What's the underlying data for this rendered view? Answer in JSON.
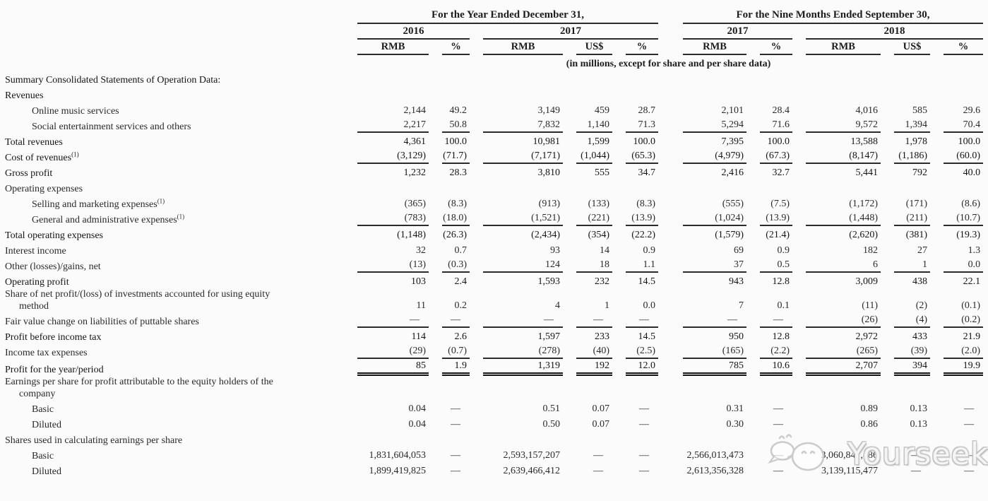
{
  "page": {
    "background": "#fbfbfb",
    "text_color": "#2a2a2a",
    "rule_color": "#2b2b2b"
  },
  "table": {
    "group_headers": [
      "For the Year Ended December 31,",
      "For the Nine Months Ended September 30,"
    ],
    "year_headers": [
      "2016",
      "2017",
      "2017",
      "2018"
    ],
    "col_headers": [
      "RMB",
      "%",
      "RMB",
      "US$",
      "%",
      "RMB",
      "%",
      "RMB",
      "US$",
      "%"
    ],
    "units_note": "(in millions, except for share and per share data)",
    "rows": [
      {
        "label": "Summary Consolidated Statements of Operation Data:",
        "bold": true,
        "indent": 0,
        "values": null
      },
      {
        "label": "Revenues",
        "bold": true,
        "indent": 0,
        "values": null
      },
      {
        "label": "Online music services",
        "indent": 1,
        "values": [
          "2,144",
          "49.2",
          "3,149",
          "459",
          "28.7",
          "2,101",
          "28.4",
          "4,016",
          "585",
          "29.6"
        ]
      },
      {
        "label": "Social entertainment services and others",
        "indent": 1,
        "rule": "single",
        "values": [
          "2,217",
          "50.8",
          "7,832",
          "1,140",
          "71.3",
          "5,294",
          "71.6",
          "9,572",
          "1,394",
          "70.4"
        ]
      },
      {
        "label": "Total revenues",
        "bold": true,
        "indent": 0,
        "values": [
          "4,361",
          "100.0",
          "10,981",
          "1,599",
          "100.0",
          "7,395",
          "100.0",
          "13,588",
          "1,978",
          "100.0"
        ]
      },
      {
        "label": "Cost of revenues",
        "sup": "(1)",
        "bold": true,
        "indent": 0,
        "rule": "single",
        "values": [
          "(3,129)",
          "(71.7)",
          "(7,171)",
          "(1,044)",
          "(65.3)",
          "(4,979)",
          "(67.3)",
          "(8,147)",
          "(1,186)",
          "(60.0)"
        ]
      },
      {
        "label": "Gross profit",
        "bold": true,
        "indent": 0,
        "values": [
          "1,232",
          "28.3",
          "3,810",
          "555",
          "34.7",
          "2,416",
          "32.7",
          "5,441",
          "792",
          "40.0"
        ]
      },
      {
        "label": "Operating expenses",
        "indent": 0,
        "values": null
      },
      {
        "label": "Selling and marketing expenses",
        "sup": "(1)",
        "indent": 1,
        "values": [
          "(365)",
          "(8.3)",
          "(913)",
          "(133)",
          "(8.3)",
          "(555)",
          "(7.5)",
          "(1,172)",
          "(171)",
          "(8.6)"
        ]
      },
      {
        "label": "General and administrative expenses",
        "sup": "(1)",
        "indent": 1,
        "rule": "single",
        "values": [
          "(783)",
          "(18.0)",
          "(1,521)",
          "(221)",
          "(13.9)",
          "(1,024)",
          "(13.9)",
          "(1,448)",
          "(211)",
          "(10.7)"
        ]
      },
      {
        "label": "Total operating expenses",
        "bold": true,
        "indent": 0,
        "values": [
          "(1,148)",
          "(26.3)",
          "(2,434)",
          "(354)",
          "(22.2)",
          "(1,579)",
          "(21.4)",
          "(2,620)",
          "(381)",
          "(19.3)"
        ]
      },
      {
        "label": "Interest income",
        "indent": 0,
        "values": [
          "32",
          "0.7",
          "93",
          "14",
          "0.9",
          "69",
          "0.9",
          "182",
          "27",
          "1.3"
        ]
      },
      {
        "label": "Other (losses)/gains, net",
        "indent": 0,
        "rule": "single",
        "values": [
          "(13)",
          "(0.3)",
          "124",
          "18",
          "1.1",
          "37",
          "0.5",
          "6",
          "1",
          "0.0"
        ]
      },
      {
        "label": "Operating profit",
        "bold": true,
        "indent": 0,
        "values": [
          "103",
          "2.4",
          "1,593",
          "232",
          "14.5",
          "943",
          "12.8",
          "3,009",
          "438",
          "22.1"
        ]
      },
      {
        "label": "Share of net profit/(loss) of investments accounted for using equity",
        "label2": "method",
        "indent": 0,
        "values": [
          "11",
          "0.2",
          "4",
          "1",
          "0.0",
          "7",
          "0.1",
          "(11)",
          "(2)",
          "(0.1)"
        ]
      },
      {
        "label": "Fair value change on liabilities of puttable shares",
        "indent": 0,
        "rule": "single",
        "values": [
          "—",
          "—",
          "—",
          "—",
          "—",
          "—",
          "—",
          "(26)",
          "(4)",
          "(0.2)"
        ]
      },
      {
        "label": "Profit before income tax",
        "bold": true,
        "indent": 0,
        "values": [
          "114",
          "2.6",
          "1,597",
          "233",
          "14.5",
          "950",
          "12.8",
          "2,972",
          "433",
          "21.9"
        ]
      },
      {
        "label": "Income tax expenses",
        "indent": 0,
        "rule": "single",
        "values": [
          "(29)",
          "(0.7)",
          "(278)",
          "(40)",
          "(2.5)",
          "(165)",
          "(2.2)",
          "(265)",
          "(39)",
          "(2.0)"
        ]
      },
      {
        "label": "Profit for the year/period",
        "bold": true,
        "indent": 0,
        "rule": "double",
        "values": [
          "85",
          "1.9",
          "1,319",
          "192",
          "12.0",
          "785",
          "10.6",
          "2,707",
          "394",
          "19.9"
        ]
      },
      {
        "label": "Earnings per share for profit attributable to the equity holders of the",
        "label2": "company",
        "indent": 0,
        "values": null
      },
      {
        "label": "Basic",
        "indent": 1,
        "values": [
          "0.04",
          "—",
          "0.51",
          "0.07",
          "—",
          "0.31",
          "—",
          "0.89",
          "0.13",
          "—"
        ]
      },
      {
        "label": "Diluted",
        "indent": 1,
        "values": [
          "0.04",
          "—",
          "0.50",
          "0.07",
          "—",
          "0.30",
          "—",
          "0.86",
          "0.13",
          "—"
        ]
      },
      {
        "label": "Shares used in calculating earnings per share",
        "indent": 0,
        "values": null
      },
      {
        "label": "Basic",
        "indent": 1,
        "values": [
          "1,831,604,053",
          "—",
          "2,593,157,207",
          "—",
          "—",
          "2,566,013,473",
          "—",
          "3,060,847,486",
          "—",
          "—"
        ]
      },
      {
        "label": "Diluted",
        "indent": 1,
        "values": [
          "1,899,419,825",
          "—",
          "2,639,466,412",
          "—",
          "—",
          "2,613,356,328",
          "—",
          "3,139,115,477",
          "—",
          "—"
        ]
      }
    ]
  },
  "watermark": {
    "text": "Yourseeker",
    "logo": "yourseeker-mascot-icon",
    "color": "#c9c9c9"
  }
}
